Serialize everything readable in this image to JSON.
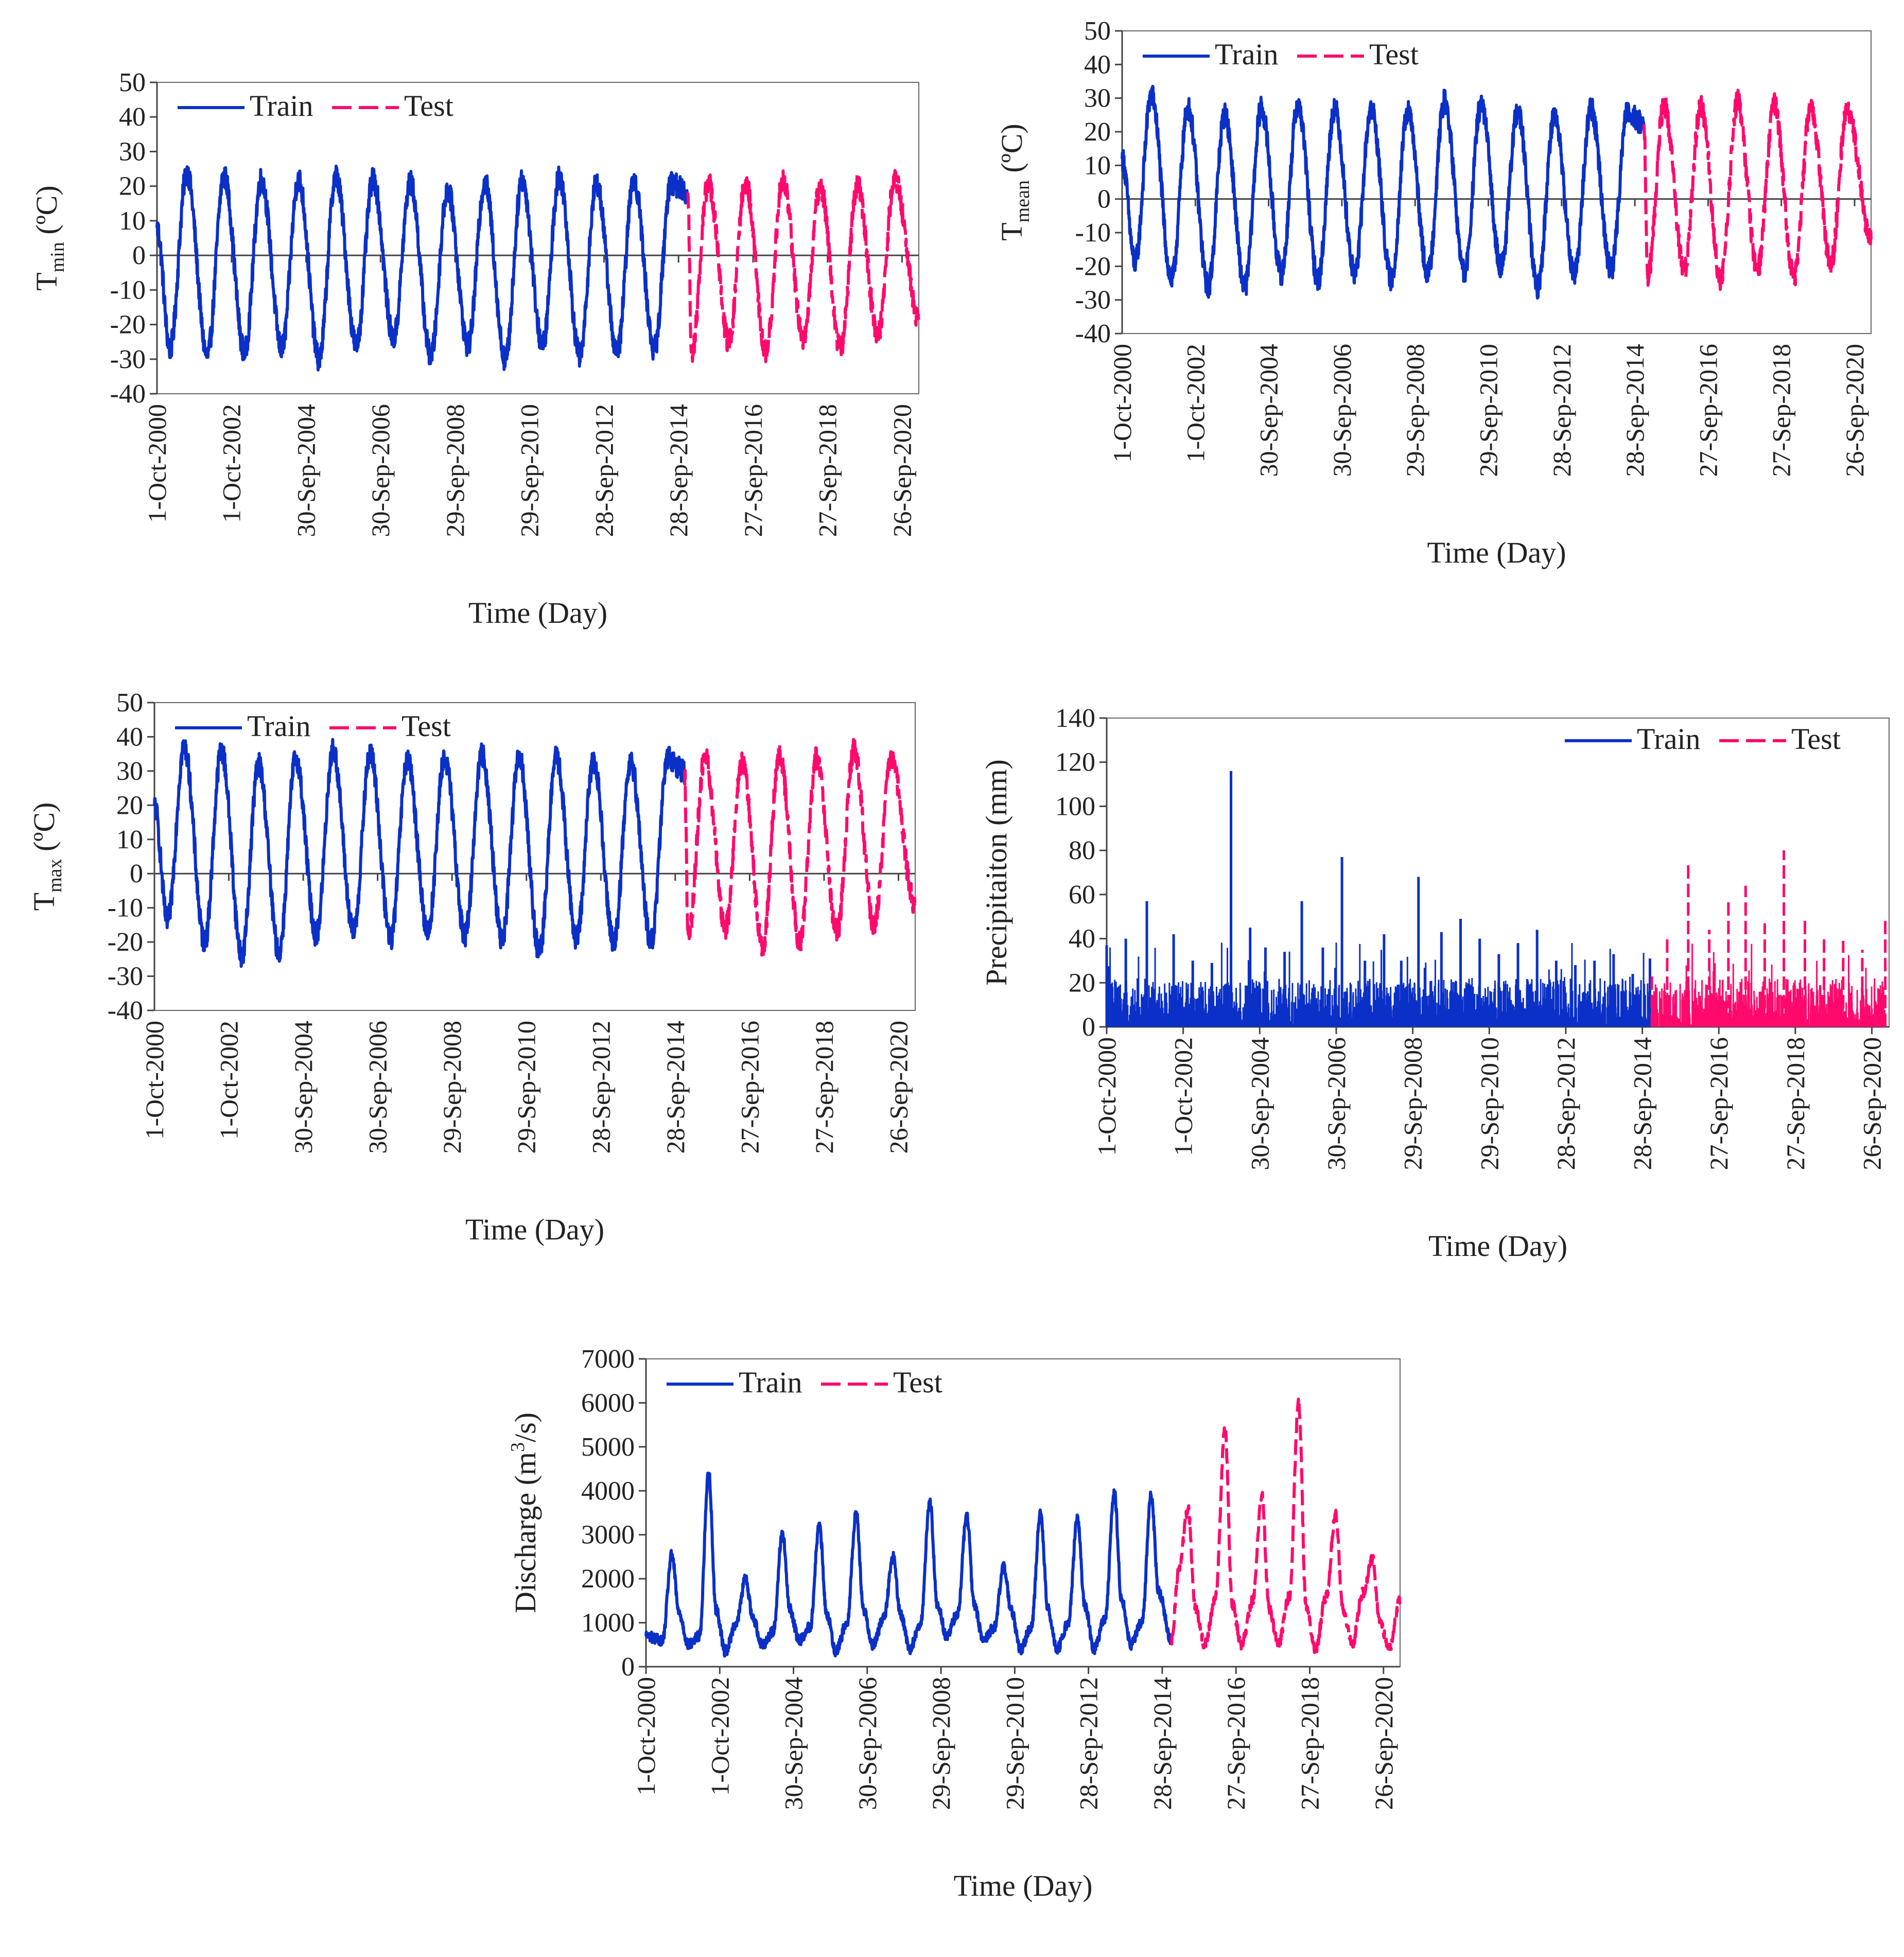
{
  "colors": {
    "train": "#0b30c8",
    "test": "#ff0a6c"
  },
  "chart_data": [
    {
      "id": "tmin",
      "type": "line",
      "ylabel": "T",
      "ylabel_sub": "min",
      "ylabel_unit": " (ºC)",
      "xlabel": "Time (Day)",
      "ylim": [
        -40,
        50
      ],
      "yticks": [
        -40,
        -30,
        -20,
        -10,
        0,
        10,
        20,
        30,
        40,
        50
      ],
      "xlim": [
        2000.75,
        2021.2
      ],
      "split": 2015.0,
      "xtick_years": [
        2000.75,
        2002.75,
        2004.75,
        2006.75,
        2008.75,
        2010.75,
        2012.75,
        2014.75,
        2016.75,
        2018.75,
        2020.75
      ],
      "xtick_labels": [
        "1-Oct-2000",
        "1-Oct-2002",
        "30-Sep-2004",
        "30-Sep-2006",
        "29-Sep-2008",
        "29-Sep-2010",
        "28-Sep-2012",
        "28-Sep-2014",
        "27-Sep-2016",
        "27-Sep-2018",
        "26-Sep-2020"
      ],
      "legend": [
        "Train",
        "Test"
      ],
      "legend_position": "top-left",
      "series": [
        {
          "name": "Train",
          "x": [
            2000.75,
            2001.1,
            2001.55,
            2002.1,
            2002.55,
            2003.1,
            2003.55,
            2004.1,
            2004.55,
            2005.1,
            2005.55,
            2006.1,
            2006.55,
            2007.1,
            2007.55,
            2008.1,
            2008.55,
            2009.1,
            2009.55,
            2010.1,
            2010.55,
            2011.1,
            2011.55,
            2012.1,
            2012.55,
            2013.1,
            2013.55,
            2014.1,
            2014.55,
            2015.0
          ],
          "values": [
            8,
            -27,
            24,
            -29,
            23,
            -28,
            22,
            -27,
            22,
            -30,
            23,
            -26,
            22,
            -24,
            21,
            -29,
            19,
            -26,
            21,
            -30,
            22,
            -26,
            23,
            -29,
            21,
            -28,
            22,
            -27,
            21,
            18
          ]
        },
        {
          "name": "Test",
          "x": [
            2015.0,
            2015.1,
            2015.55,
            2016.1,
            2016.55,
            2017.1,
            2017.55,
            2018.1,
            2018.55,
            2019.1,
            2019.55,
            2020.1,
            2020.55,
            2021.2
          ],
          "values": [
            18,
            -28,
            21,
            -25,
            21,
            -28,
            22,
            -24,
            20,
            -27,
            20,
            -23,
            22,
            -18
          ]
        }
      ]
    },
    {
      "id": "tmean",
      "type": "line",
      "ylabel": "T",
      "ylabel_sub": "mean",
      "ylabel_unit": " (ºC)",
      "xlabel": "Time (Day)",
      "ylim": [
        -40,
        50
      ],
      "yticks": [
        -40,
        -30,
        -20,
        -10,
        0,
        10,
        20,
        30,
        40,
        50
      ],
      "xlim": [
        2000.75,
        2021.2
      ],
      "split": 2015.0,
      "xtick_years": [
        2000.75,
        2002.75,
        2004.75,
        2006.75,
        2008.75,
        2010.75,
        2012.75,
        2014.75,
        2016.75,
        2018.75,
        2020.75
      ],
      "xtick_labels": [
        "1-Oct-2000",
        "1-Oct-2002",
        "30-Sep-2004",
        "30-Sep-2006",
        "29-Sep-2008",
        "29-Sep-2010",
        "28-Sep-2012",
        "28-Sep-2014",
        "27-Sep-2016",
        "27-Sep-2018",
        "26-Sep-2020"
      ],
      "legend": [
        "Train",
        "Test"
      ],
      "legend_position": "top-left",
      "series": [
        {
          "name": "Train",
          "x": [
            2000.75,
            2001.1,
            2001.55,
            2002.1,
            2002.55,
            2003.1,
            2003.55,
            2004.1,
            2004.55,
            2005.1,
            2005.55,
            2006.1,
            2006.55,
            2007.1,
            2007.55,
            2008.1,
            2008.55,
            2009.1,
            2009.55,
            2010.1,
            2010.55,
            2011.1,
            2011.55,
            2012.1,
            2012.55,
            2013.1,
            2013.55,
            2014.1,
            2014.55,
            2015.0
          ],
          "values": [
            12,
            -19,
            31,
            -24,
            27,
            -26,
            25,
            -26,
            27,
            -22,
            28,
            -24,
            27,
            -22,
            27,
            -24,
            26,
            -22,
            29,
            -22,
            28,
            -20,
            26,
            -26,
            25,
            -22,
            27,
            -21,
            26,
            22
          ]
        },
        {
          "name": "Test",
          "x": [
            2015.0,
            2015.1,
            2015.55,
            2016.1,
            2016.55,
            2017.1,
            2017.55,
            2018.1,
            2018.55,
            2019.1,
            2019.55,
            2020.1,
            2020.55,
            2021.2
          ],
          "values": [
            22,
            -23,
            28,
            -21,
            28,
            -24,
            29,
            -21,
            28,
            -23,
            28,
            -19,
            27,
            -12
          ]
        }
      ]
    },
    {
      "id": "tmax",
      "type": "line",
      "ylabel": "T",
      "ylabel_sub": "max",
      "ylabel_unit": " (ºC)",
      "xlabel": "Time (Day)",
      "ylim": [
        -40,
        50
      ],
      "yticks": [
        -40,
        -30,
        -20,
        -10,
        0,
        10,
        20,
        30,
        40,
        50
      ],
      "xlim": [
        2000.75,
        2021.2
      ],
      "split": 2015.0,
      "xtick_years": [
        2000.75,
        2002.75,
        2004.75,
        2006.75,
        2008.75,
        2010.75,
        2012.75,
        2014.75,
        2016.75,
        2018.75,
        2020.75
      ],
      "xtick_labels": [
        "1-Oct-2000",
        "1-Oct-2002",
        "30-Sep-2004",
        "30-Sep-2006",
        "29-Sep-2008",
        "29-Sep-2010",
        "28-Sep-2012",
        "28-Sep-2014",
        "27-Sep-2016",
        "27-Sep-2018",
        "26-Sep-2020"
      ],
      "legend": [
        "Train",
        "Test"
      ],
      "legend_position": "top-left",
      "series": [
        {
          "name": "Train",
          "x": [
            2000.75,
            2001.1,
            2001.55,
            2002.1,
            2002.55,
            2003.1,
            2003.55,
            2004.1,
            2004.55,
            2005.1,
            2005.55,
            2006.1,
            2006.55,
            2007.1,
            2007.55,
            2008.1,
            2008.55,
            2009.1,
            2009.55,
            2010.1,
            2010.55,
            2011.1,
            2011.55,
            2012.1,
            2012.55,
            2013.1,
            2013.55,
            2014.1,
            2014.55,
            2015.0
          ],
          "values": [
            20,
            -14,
            37,
            -20,
            36,
            -24,
            32,
            -23,
            34,
            -18,
            36,
            -17,
            35,
            -19,
            33,
            -17,
            34,
            -18,
            35,
            -19,
            34,
            -23,
            34,
            -19,
            33,
            -20,
            33,
            -20,
            34,
            30
          ]
        },
        {
          "name": "Test",
          "x": [
            2015.0,
            2015.1,
            2015.55,
            2016.1,
            2016.55,
            2017.1,
            2017.55,
            2018.1,
            2018.55,
            2019.1,
            2019.55,
            2020.1,
            2020.55,
            2021.2
          ],
          "values": [
            30,
            -18,
            34,
            -16,
            33,
            -21,
            35,
            -20,
            34,
            -17,
            36,
            -15,
            33,
            -9
          ]
        }
      ]
    },
    {
      "id": "precip",
      "type": "line",
      "ylabel": "Precipitaiton (mm)",
      "xlabel": "Time (Day)",
      "ylim": [
        0,
        140
      ],
      "yticks": [
        0,
        20,
        40,
        60,
        80,
        100,
        120,
        140
      ],
      "xlim": [
        2000.75,
        2021.2
      ],
      "split": 2015.0,
      "xtick_years": [
        2000.75,
        2002.75,
        2004.75,
        2006.75,
        2008.75,
        2010.75,
        2012.75,
        2014.75,
        2016.75,
        2018.75,
        2020.75
      ],
      "xtick_labels": [
        "1-Oct-2000",
        "1-Oct-2002",
        "30-Sep-2004",
        "30-Sep-2006",
        "29-Sep-2008",
        "29-Sep-2010",
        "28-Sep-2012",
        "28-Sep-2014",
        "27-Sep-2016",
        "27-Sep-2018",
        "26-Sep-2020"
      ],
      "legend": [
        "Train",
        "Test"
      ],
      "legend_position": "top-right",
      "series": [
        {
          "name": "Train",
          "x": [
            2000.75,
            2001.25,
            2001.8,
            2002.5,
            2003.0,
            2003.5,
            2004.0,
            2004.5,
            2004.9,
            2005.4,
            2005.85,
            2006.4,
            2006.9,
            2007.5,
            2008.0,
            2008.45,
            2008.9,
            2009.5,
            2010.0,
            2010.5,
            2011.0,
            2011.5,
            2012.0,
            2012.5,
            2013.0,
            2013.5,
            2014.0,
            2014.5,
            2014.95
          ],
          "values": [
            37,
            40,
            57,
            42,
            30,
            29,
            116,
            45,
            36,
            34,
            57,
            36,
            77,
            30,
            42,
            30,
            68,
            43,
            49,
            40,
            33,
            38,
            44,
            30,
            28,
            30,
            33,
            24,
            31
          ]
        },
        {
          "name": "Test",
          "x": [
            2015.0,
            2015.4,
            2015.95,
            2016.5,
            2017.0,
            2017.45,
            2017.95,
            2018.45,
            2019.0,
            2019.5,
            2020.0,
            2020.5,
            2021.1
          ],
          "values": [
            24,
            41,
            74,
            44,
            57,
            64,
            47,
            80,
            49,
            42,
            39,
            35,
            48
          ]
        }
      ]
    },
    {
      "id": "discharge",
      "type": "line",
      "ylabel": "Discharge (m",
      "ylabel_sup": "3",
      "ylabel_unit": "/s)",
      "xlabel": "Time (Day)",
      "ylim": [
        0,
        7000
      ],
      "yticks": [
        0,
        1000,
        2000,
        3000,
        4000,
        5000,
        6000,
        7000
      ],
      "xlim": [
        2000.75,
        2021.2
      ],
      "split": 2015.0,
      "xtick_years": [
        2000.75,
        2002.75,
        2004.75,
        2006.75,
        2008.75,
        2010.75,
        2012.75,
        2014.75,
        2016.75,
        2018.75,
        2020.75
      ],
      "xtick_labels": [
        "1-Oct-2000",
        "1-Oct-2002",
        "30-Sep-2004",
        "30-Sep-2006",
        "29-Sep-2008",
        "29-Sep-2010",
        "28-Sep-2012",
        "28-Sep-2014",
        "27-Sep-2016",
        "27-Sep-2018",
        "26-Sep-2020"
      ],
      "legend": [
        "Train",
        "Test"
      ],
      "legend_position": "top-left",
      "series": [
        {
          "name": "Train",
          "x": [
            2000.75,
            2001.2,
            2001.45,
            2001.65,
            2001.9,
            2002.2,
            2002.45,
            2002.65,
            2002.9,
            2003.2,
            2003.45,
            2003.65,
            2003.9,
            2004.2,
            2004.45,
            2004.65,
            2004.9,
            2005.2,
            2005.45,
            2005.65,
            2005.9,
            2006.2,
            2006.45,
            2006.65,
            2006.9,
            2007.2,
            2007.45,
            2007.65,
            2007.9,
            2008.2,
            2008.45,
            2008.65,
            2008.9,
            2009.2,
            2009.45,
            2009.65,
            2009.9,
            2010.2,
            2010.45,
            2010.65,
            2010.9,
            2011.2,
            2011.45,
            2011.65,
            2011.9,
            2012.2,
            2012.45,
            2012.65,
            2012.9,
            2013.2,
            2013.45,
            2013.65,
            2013.9,
            2014.2,
            2014.45,
            2014.65,
            2015.0
          ],
          "values": [
            700,
            600,
            2550,
            1200,
            500,
            700,
            4400,
            1300,
            350,
            1000,
            2000,
            1100,
            500,
            800,
            3050,
            1300,
            600,
            900,
            3200,
            1200,
            350,
            1000,
            3500,
            1300,
            500,
            1100,
            2500,
            1200,
            400,
            1000,
            3750,
            1400,
            700,
            1200,
            3450,
            1400,
            600,
            900,
            2300,
            1300,
            400,
            900,
            3500,
            1300,
            400,
            1000,
            3350,
            1400,
            400,
            1100,
            3950,
            1500,
            500,
            1000,
            3900,
            1700,
            600
          ]
        },
        {
          "name": "Test",
          "x": [
            2015.0,
            2015.2,
            2015.45,
            2015.65,
            2015.9,
            2016.2,
            2016.45,
            2016.65,
            2016.9,
            2017.2,
            2017.45,
            2017.65,
            2017.9,
            2018.2,
            2018.45,
            2018.65,
            2018.9,
            2019.2,
            2019.45,
            2019.65,
            2019.9,
            2020.2,
            2020.45,
            2020.65,
            2020.9,
            2021.2
          ],
          "values": [
            600,
            2200,
            3600,
            1300,
            500,
            1600,
            5400,
            1400,
            500,
            1500,
            3900,
            1300,
            500,
            1600,
            6000,
            1400,
            400,
            1600,
            3450,
            1300,
            500,
            1700,
            2450,
            1000,
            400,
            1500
          ]
        }
      ]
    }
  ]
}
